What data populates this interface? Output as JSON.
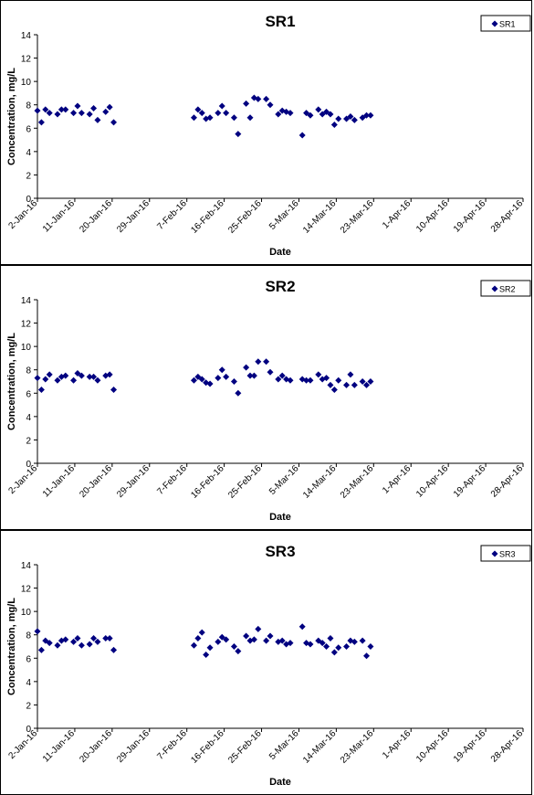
{
  "chart_data": [
    {
      "type": "scatter",
      "title": "SR1",
      "xlabel": "Date",
      "ylabel": "Concentration, mg/L",
      "ylim": [
        0,
        14
      ],
      "yticks": [
        "0",
        "2",
        "4",
        "6",
        "8",
        "10",
        "12",
        "14"
      ],
      "xticks": [
        "2-Jan-16",
        "11-Jan-16",
        "20-Jan-16",
        "29-Jan-16",
        "7-Feb-16",
        "16-Feb-16",
        "25-Feb-16",
        "5-Mar-16",
        "14-Mar-16",
        "23-Mar-16",
        "1-Apr-16",
        "10-Apr-16",
        "19-Apr-16",
        "28-Apr-16"
      ],
      "xlim": [
        "2016-01-02",
        "2016-05-02"
      ],
      "legend": "top-right",
      "color": "#000080",
      "series": [
        {
          "name": "SR1",
          "points": [
            [
              "2016-01-02",
              7.5
            ],
            [
              "2016-01-03",
              6.5
            ],
            [
              "2016-01-04",
              7.6
            ],
            [
              "2016-01-05",
              7.3
            ],
            [
              "2016-01-07",
              7.2
            ],
            [
              "2016-01-08",
              7.6
            ],
            [
              "2016-01-09",
              7.6
            ],
            [
              "2016-01-11",
              7.3
            ],
            [
              "2016-01-12",
              7.9
            ],
            [
              "2016-01-13",
              7.3
            ],
            [
              "2016-01-15",
              7.2
            ],
            [
              "2016-01-16",
              7.7
            ],
            [
              "2016-01-17",
              6.7
            ],
            [
              "2016-01-19",
              7.4
            ],
            [
              "2016-01-20",
              7.8
            ],
            [
              "2016-01-21",
              6.5
            ],
            [
              "2016-02-10",
              6.9
            ],
            [
              "2016-02-11",
              7.6
            ],
            [
              "2016-02-12",
              7.3
            ],
            [
              "2016-02-13",
              6.8
            ],
            [
              "2016-02-14",
              6.9
            ],
            [
              "2016-02-16",
              7.3
            ],
            [
              "2016-02-17",
              7.9
            ],
            [
              "2016-02-18",
              7.3
            ],
            [
              "2016-02-20",
              6.9
            ],
            [
              "2016-02-21",
              5.5
            ],
            [
              "2016-02-23",
              8.1
            ],
            [
              "2016-02-24",
              6.9
            ],
            [
              "2016-02-25",
              8.6
            ],
            [
              "2016-02-26",
              8.5
            ],
            [
              "2016-02-28",
              8.5
            ],
            [
              "2016-02-29",
              8.0
            ],
            [
              "2016-03-02",
              7.2
            ],
            [
              "2016-03-03",
              7.5
            ],
            [
              "2016-03-04",
              7.4
            ],
            [
              "2016-03-05",
              7.3
            ],
            [
              "2016-03-08",
              5.4
            ],
            [
              "2016-03-09",
              7.3
            ],
            [
              "2016-03-10",
              7.1
            ],
            [
              "2016-03-12",
              7.6
            ],
            [
              "2016-03-13",
              7.2
            ],
            [
              "2016-03-14",
              7.4
            ],
            [
              "2016-03-15",
              7.2
            ],
            [
              "2016-03-16",
              6.3
            ],
            [
              "2016-03-17",
              6.8
            ],
            [
              "2016-03-19",
              6.8
            ],
            [
              "2016-03-20",
              7.0
            ],
            [
              "2016-03-21",
              6.7
            ],
            [
              "2016-03-23",
              6.9
            ],
            [
              "2016-03-24",
              7.1
            ],
            [
              "2016-03-25",
              7.1
            ]
          ]
        }
      ]
    },
    {
      "type": "scatter",
      "title": "SR2",
      "xlabel": "Date",
      "ylabel": "Concentration, mg/L",
      "ylim": [
        0,
        14
      ],
      "yticks": [
        "0",
        "2",
        "4",
        "6",
        "8",
        "10",
        "12",
        "14"
      ],
      "xticks": [
        "2-Jan-16",
        "11-Jan-16",
        "20-Jan-16",
        "29-Jan-16",
        "7-Feb-16",
        "16-Feb-16",
        "25-Feb-16",
        "5-Mar-16",
        "14-Mar-16",
        "23-Mar-16",
        "1-Apr-16",
        "10-Apr-16",
        "19-Apr-16",
        "28-Apr-16"
      ],
      "xlim": [
        "2016-01-02",
        "2016-05-02"
      ],
      "legend": "top-right",
      "color": "#000080",
      "series": [
        {
          "name": "SR2",
          "points": [
            [
              "2016-01-02",
              7.3
            ],
            [
              "2016-01-03",
              6.3
            ],
            [
              "2016-01-04",
              7.2
            ],
            [
              "2016-01-05",
              7.6
            ],
            [
              "2016-01-07",
              7.1
            ],
            [
              "2016-01-08",
              7.4
            ],
            [
              "2016-01-09",
              7.5
            ],
            [
              "2016-01-11",
              7.1
            ],
            [
              "2016-01-12",
              7.7
            ],
            [
              "2016-01-13",
              7.5
            ],
            [
              "2016-01-15",
              7.4
            ],
            [
              "2016-01-16",
              7.4
            ],
            [
              "2016-01-17",
              7.1
            ],
            [
              "2016-01-19",
              7.5
            ],
            [
              "2016-01-20",
              7.6
            ],
            [
              "2016-01-21",
              6.3
            ],
            [
              "2016-02-10",
              7.1
            ],
            [
              "2016-02-11",
              7.4
            ],
            [
              "2016-02-12",
              7.2
            ],
            [
              "2016-02-13",
              6.9
            ],
            [
              "2016-02-14",
              6.8
            ],
            [
              "2016-02-16",
              7.3
            ],
            [
              "2016-02-17",
              8.0
            ],
            [
              "2016-02-18",
              7.4
            ],
            [
              "2016-02-20",
              7.0
            ],
            [
              "2016-02-21",
              6.0
            ],
            [
              "2016-02-23",
              8.2
            ],
            [
              "2016-02-24",
              7.5
            ],
            [
              "2016-02-25",
              7.5
            ],
            [
              "2016-02-26",
              8.7
            ],
            [
              "2016-02-28",
              8.7
            ],
            [
              "2016-02-29",
              7.8
            ],
            [
              "2016-03-02",
              7.2
            ],
            [
              "2016-03-03",
              7.5
            ],
            [
              "2016-03-04",
              7.2
            ],
            [
              "2016-03-05",
              7.1
            ],
            [
              "2016-03-08",
              7.2
            ],
            [
              "2016-03-09",
              7.1
            ],
            [
              "2016-03-10",
              7.1
            ],
            [
              "2016-03-12",
              7.6
            ],
            [
              "2016-03-13",
              7.2
            ],
            [
              "2016-03-14",
              7.3
            ],
            [
              "2016-03-15",
              6.7
            ],
            [
              "2016-03-16",
              6.3
            ],
            [
              "2016-03-17",
              7.1
            ],
            [
              "2016-03-19",
              6.7
            ],
            [
              "2016-03-20",
              7.6
            ],
            [
              "2016-03-21",
              6.7
            ],
            [
              "2016-03-23",
              7.0
            ],
            [
              "2016-03-24",
              6.7
            ],
            [
              "2016-03-25",
              7.0
            ]
          ]
        }
      ]
    },
    {
      "type": "scatter",
      "title": "SR3",
      "xlabel": "Date",
      "ylabel": "Concentration, mg/L",
      "ylim": [
        0,
        14
      ],
      "yticks": [
        "0",
        "2",
        "4",
        "6",
        "8",
        "10",
        "12",
        "14"
      ],
      "xticks": [
        "2-Jan-16",
        "11-Jan-16",
        "20-Jan-16",
        "29-Jan-16",
        "7-Feb-16",
        "16-Feb-16",
        "25-Feb-16",
        "5-Mar-16",
        "14-Mar-16",
        "23-Mar-16",
        "1-Apr-16",
        "10-Apr-16",
        "19-Apr-16",
        "28-Apr-16"
      ],
      "xlim": [
        "2016-01-02",
        "2016-05-02"
      ],
      "legend": "top-right",
      "color": "#000080",
      "series": [
        {
          "name": "SR3",
          "points": [
            [
              "2016-01-02",
              8.3
            ],
            [
              "2016-01-03",
              6.7
            ],
            [
              "2016-01-04",
              7.5
            ],
            [
              "2016-01-05",
              7.3
            ],
            [
              "2016-01-07",
              7.1
            ],
            [
              "2016-01-08",
              7.5
            ],
            [
              "2016-01-09",
              7.6
            ],
            [
              "2016-01-11",
              7.4
            ],
            [
              "2016-01-12",
              7.7
            ],
            [
              "2016-01-13",
              7.1
            ],
            [
              "2016-01-15",
              7.2
            ],
            [
              "2016-01-16",
              7.7
            ],
            [
              "2016-01-17",
              7.4
            ],
            [
              "2016-01-19",
              7.7
            ],
            [
              "2016-01-20",
              7.7
            ],
            [
              "2016-01-21",
              6.7
            ],
            [
              "2016-02-10",
              7.1
            ],
            [
              "2016-02-11",
              7.7
            ],
            [
              "2016-02-12",
              8.2
            ],
            [
              "2016-02-13",
              6.3
            ],
            [
              "2016-02-14",
              6.9
            ],
            [
              "2016-02-16",
              7.4
            ],
            [
              "2016-02-17",
              7.8
            ],
            [
              "2016-02-18",
              7.6
            ],
            [
              "2016-02-20",
              7.0
            ],
            [
              "2016-02-21",
              6.6
            ],
            [
              "2016-02-23",
              7.9
            ],
            [
              "2016-02-24",
              7.5
            ],
            [
              "2016-02-25",
              7.6
            ],
            [
              "2016-02-26",
              8.5
            ],
            [
              "2016-02-28",
              7.5
            ],
            [
              "2016-02-29",
              7.9
            ],
            [
              "2016-03-02",
              7.4
            ],
            [
              "2016-03-03",
              7.5
            ],
            [
              "2016-03-04",
              7.2
            ],
            [
              "2016-03-05",
              7.3
            ],
            [
              "2016-03-08",
              8.7
            ],
            [
              "2016-03-09",
              7.3
            ],
            [
              "2016-03-10",
              7.2
            ],
            [
              "2016-03-12",
              7.5
            ],
            [
              "2016-03-13",
              7.3
            ],
            [
              "2016-03-14",
              7.0
            ],
            [
              "2016-03-15",
              7.7
            ],
            [
              "2016-03-16",
              6.5
            ],
            [
              "2016-03-17",
              6.9
            ],
            [
              "2016-03-19",
              7.0
            ],
            [
              "2016-03-20",
              7.5
            ],
            [
              "2016-03-21",
              7.4
            ],
            [
              "2016-03-23",
              7.5
            ],
            [
              "2016-03-24",
              6.2
            ],
            [
              "2016-03-25",
              7.0
            ]
          ]
        }
      ]
    }
  ]
}
